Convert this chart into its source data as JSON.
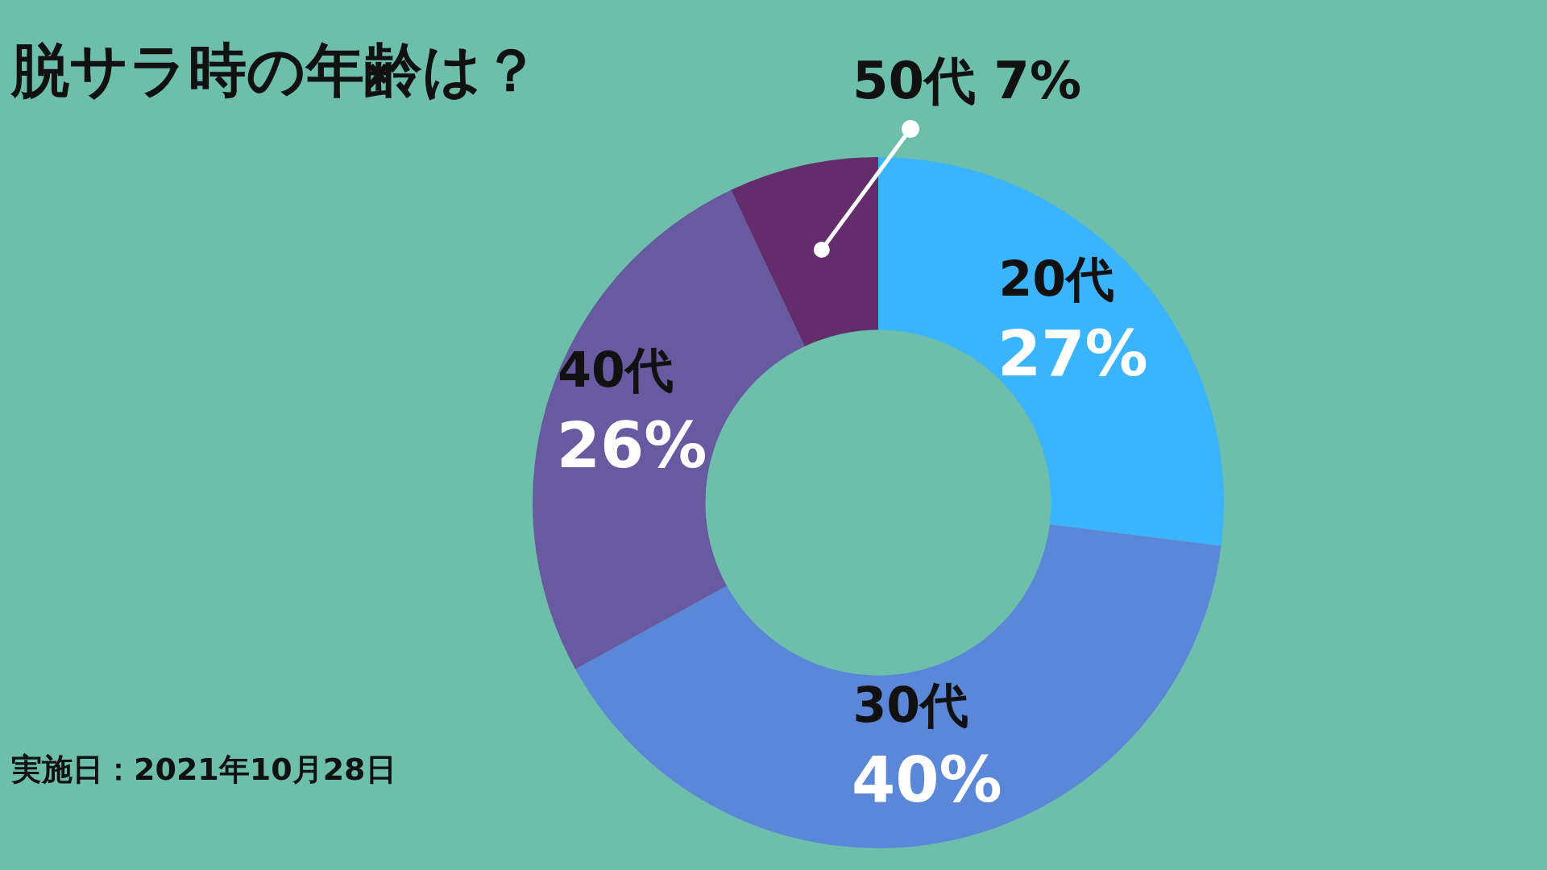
{
  "chart_data": {
    "type": "donut",
    "title": "脱サラ時の年齢は？",
    "categories": [
      "20代",
      "30代",
      "40代",
      "50代"
    ],
    "values": [
      27,
      40,
      26,
      7
    ],
    "value_labels": [
      "27%",
      "40%",
      "26%",
      "7%"
    ],
    "colors": [
      "#3bb4fe",
      "#5b87d9",
      "#675aa0",
      "#632c6a"
    ],
    "annotations": [
      "実施日：2021年10月28日"
    ]
  }
}
